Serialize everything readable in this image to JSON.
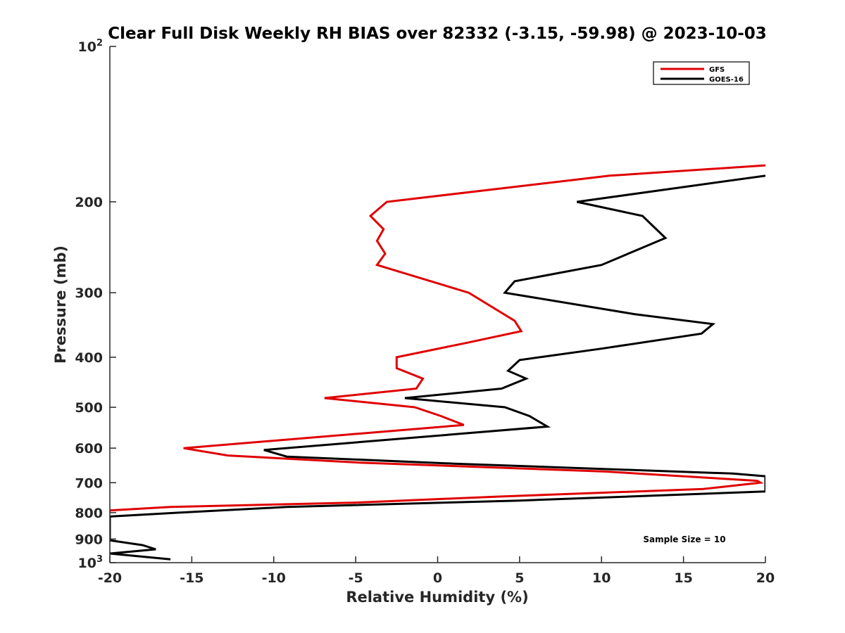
{
  "chart_data": {
    "type": "line",
    "title": "Clear Full Disk Weekly RH BIAS over 82332 (-3.15, -59.98) @ 2023-10-03",
    "xlabel": "Relative Humidity (%)",
    "ylabel": "Pressure (mb)",
    "xlim": [
      -20,
      20
    ],
    "ylim": [
      100,
      1000
    ],
    "yscale": "log",
    "y_reversed": true,
    "grid": false,
    "legend_position": "top-right",
    "x_ticks": [
      "-20",
      "-15",
      "-10",
      "-5",
      "0",
      "5",
      "10",
      "15",
      "20"
    ],
    "y_ticks": [
      {
        "base": "10",
        "sup": "2"
      },
      {
        "base": "200",
        "sup": ""
      },
      {
        "base": "300",
        "sup": ""
      },
      {
        "base": "400",
        "sup": ""
      },
      {
        "base": "500",
        "sup": ""
      },
      {
        "base": "600",
        "sup": ""
      },
      {
        "base": "700",
        "sup": ""
      },
      {
        "base": "800",
        "sup": ""
      },
      {
        "base": "900",
        "sup": ""
      },
      {
        "base": "10",
        "sup": "3"
      }
    ],
    "x_tick_values": [
      -20,
      -15,
      -10,
      -5,
      0,
      5,
      10,
      15,
      20
    ],
    "y_tick_values": [
      100,
      200,
      300,
      400,
      500,
      600,
      700,
      800,
      900,
      1000
    ],
    "annotation": "Sample Size = 10",
    "series": [
      {
        "name": "GFS",
        "color": "#e00000",
        "x": [
          20,
          10.5,
          -3.1,
          -4.1,
          -3.3,
          -3.7,
          -3.2,
          -3.7,
          1.9,
          4.7,
          5.1,
          1.8,
          -2.5,
          -2.5,
          -0.9,
          -1.3,
          -6.9,
          -1.4,
          0.2,
          1.6,
          -15.5,
          -12.8,
          -4.8,
          10.2,
          19.5,
          19.7,
          16.2,
          3.5,
          -5.0,
          -16.3,
          -20
        ],
        "y": [
          170,
          178,
          200,
          213,
          226,
          238,
          252,
          265,
          300,
          340,
          356,
          375,
          400,
          420,
          440,
          460,
          480,
          500,
          520,
          541,
          600,
          620,
          640,
          666,
          694,
          700,
          720,
          745,
          765,
          780,
          792
        ]
      },
      {
        "name": "GOES-16",
        "color": "#000000",
        "x": [
          20,
          8.5,
          12.5,
          13.9,
          10.0,
          4.7,
          4.1,
          12.0,
          16.8,
          16.1,
          10.0,
          5.0,
          4.3,
          5.4,
          3.9,
          -2.0,
          4.1,
          5.6,
          6.7,
          -10.6,
          -9.2,
          1.0,
          18.0,
          20,
          20,
          5.0,
          -9.2,
          -15.8,
          -20,
          -20,
          -18.0,
          -17.2,
          -20,
          -16.3
        ],
        "y": [
          178,
          200,
          213,
          235,
          265,
          285,
          300,
          330,
          345,
          360,
          385,
          405,
          425,
          440,
          460,
          480,
          500,
          520,
          545,
          605,
          623,
          643,
          672,
          680,
          728,
          758,
          780,
          800,
          814,
          905,
          925,
          942,
          960,
          985
        ]
      }
    ]
  }
}
